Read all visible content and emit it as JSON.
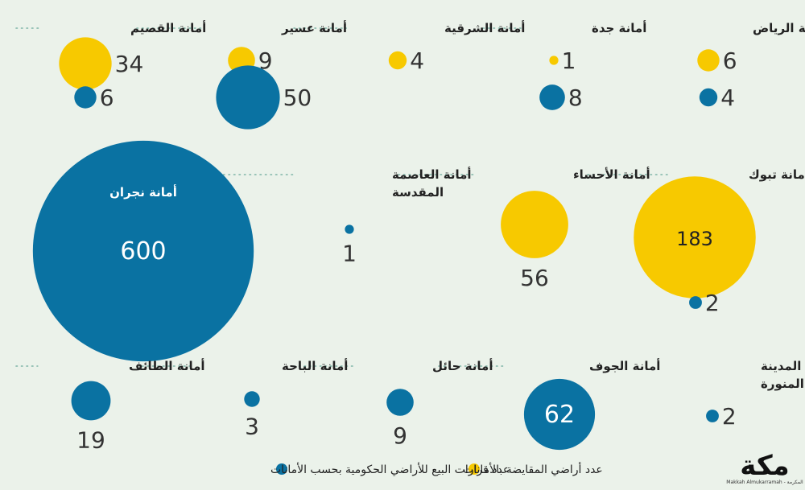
{
  "chart_data": {
    "type": "bubble",
    "series": [
      {
        "name": "عدد أراضي المقايضة بالأمانات",
        "color": "#f7c900"
      },
      {
        "name": "عدد قرارات البيع للأراضي الحكومية بحسب الأمانات",
        "color": "#0a72a2"
      }
    ],
    "items": [
      {
        "label": "أمانة الرياض",
        "yellow": 6,
        "blue": 4
      },
      {
        "label": "أمانة جدة",
        "yellow": 1,
        "blue": 8
      },
      {
        "label": "أمانة الشرقية",
        "yellow": 4,
        "blue": null
      },
      {
        "label": "أمانة عسير",
        "yellow": 9,
        "blue": 50
      },
      {
        "label": "أمانة القصيم",
        "yellow": 34,
        "blue": 6
      },
      {
        "label": "أمانة تبوك",
        "yellow": 183,
        "blue": 2
      },
      {
        "label": "أمانة الأحساء",
        "yellow": 56,
        "blue": null
      },
      {
        "label": "أمانة العاصمة المقدسة",
        "label_lines": [
          "أمانة العاصمة",
          "المقدسة"
        ],
        "yellow": null,
        "blue": 1
      },
      {
        "label": "أمانة نجران",
        "yellow": null,
        "blue": 600
      },
      {
        "label": "أمانة المدينة المنورة",
        "label_lines": [
          "أمانة المدينة",
          "المنورة"
        ],
        "yellow": null,
        "blue": 2
      },
      {
        "label": "أمانة الجوف",
        "yellow": null,
        "blue": 62
      },
      {
        "label": "أمانة حائل",
        "yellow": null,
        "blue": 9
      },
      {
        "label": "أمانة الباحة",
        "yellow": null,
        "blue": 3
      },
      {
        "label": "أمانة الطائف",
        "yellow": null,
        "blue": 19
      }
    ]
  },
  "legend": {
    "yellow_label": "عدد أراضي المقايضة بالأمانات",
    "blue_label": "عدد قرارات البيع للأراضي الحكومية بحسب الأمانات"
  },
  "logo": {
    "text": "مكة",
    "subtitle": "Makkah Almukarramah - المكرمة"
  }
}
